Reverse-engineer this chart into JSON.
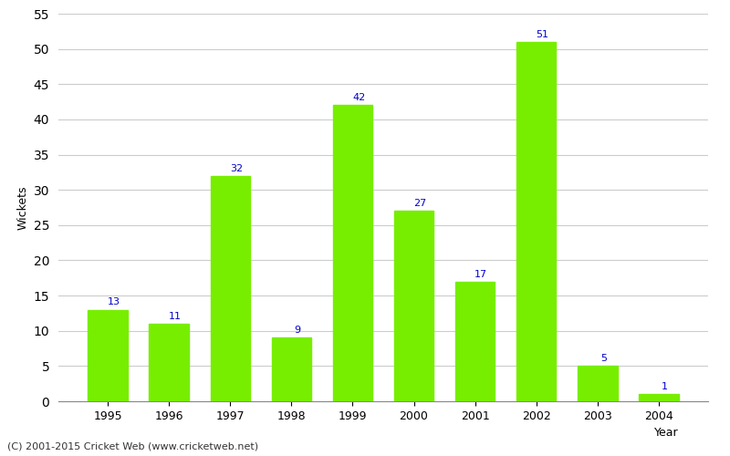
{
  "years": [
    "1995",
    "1996",
    "1997",
    "1998",
    "1999",
    "2000",
    "2001",
    "2002",
    "2003",
    "2004"
  ],
  "wickets": [
    13,
    11,
    32,
    9,
    42,
    27,
    17,
    51,
    5,
    1
  ],
  "bar_color": "#77ee00",
  "bar_edge_color": "#77ee00",
  "label_color": "#0000cc",
  "xlabel": "Year",
  "ylabel": "Wickets",
  "ylim": [
    0,
    55
  ],
  "yticks": [
    0,
    5,
    10,
    15,
    20,
    25,
    30,
    35,
    40,
    45,
    50,
    55
  ],
  "label_fontsize": 8,
  "axis_fontsize": 9,
  "footer_text": "(C) 2001-2015 Cricket Web (www.cricketweb.net)",
  "footer_fontsize": 8,
  "background_color": "#ffffff",
  "grid_color": "#cccccc"
}
